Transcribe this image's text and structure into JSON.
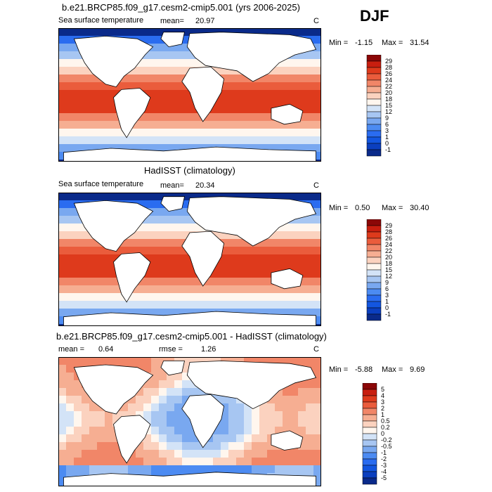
{
  "season": "DJF",
  "palette": {
    "sst": [
      "#0a2a8a",
      "#0b3fbf",
      "#1356e0",
      "#2a6cf0",
      "#4c8bf2",
      "#79a8f0",
      "#a7c6f2",
      "#d3e3f7",
      "#fff6ee",
      "#fbd2bf",
      "#f6ae92",
      "#f18668",
      "#ea5c3c",
      "#de3a1c",
      "#c81e0f",
      "#8b0707"
    ],
    "diff": [
      "#0a2a8a",
      "#0b3fbf",
      "#1356e0",
      "#2a6cf0",
      "#4c8bf2",
      "#79a8f0",
      "#a7c6f2",
      "#d3e3f7",
      "#fff6ee",
      "#fbd2bf",
      "#f6ae92",
      "#f18668",
      "#ea5c3c",
      "#de3a1c",
      "#c81e0f",
      "#8b0707"
    ]
  },
  "panels": [
    {
      "title": "b.e21.BRCP85.f09_g17.cesm2-cmip5.001 (yrs 2006-2025)",
      "left_label": "Sea surface temperature",
      "mean_label": "mean=",
      "mean_value": "20.97",
      "rmse_label": "",
      "rmse_value": "",
      "units": "C",
      "min_label": "Min =",
      "min_value": "-1.15",
      "max_label": "Max =",
      "max_value": "31.54",
      "colorbar_levels": [
        "29",
        "28",
        "26",
        "24",
        "22",
        "20",
        "18",
        "15",
        "12",
        "9",
        "6",
        "3",
        "1",
        "0",
        "-1"
      ],
      "field": "sst"
    },
    {
      "title": "HadISST (climatology)",
      "left_label": "Sea surface temperature",
      "mean_label": "mean=",
      "mean_value": "20.34",
      "rmse_label": "",
      "rmse_value": "",
      "units": "C",
      "min_label": "Min =",
      "min_value": "0.50",
      "max_label": "Max =",
      "max_value": "30.40",
      "colorbar_levels": [
        "29",
        "28",
        "26",
        "24",
        "22",
        "20",
        "18",
        "15",
        "12",
        "9",
        "6",
        "3",
        "1",
        "0",
        "-1"
      ],
      "field": "sst"
    },
    {
      "title": "b.e21.BRCP85.f09_g17.cesm2-cmip5.001 - HadISST (climatology)",
      "left_label": "",
      "mean_label": "mean =",
      "mean_value": "0.64",
      "rmse_label": "rmse =",
      "rmse_value": "1.26",
      "units": "C",
      "min_label": "Min =",
      "min_value": "-5.88",
      "max_label": "Max =",
      "max_value": "9.69",
      "colorbar_levels": [
        "5",
        "4",
        "3",
        "2",
        "1",
        "0.5",
        "0.2",
        "0",
        "-0.2",
        "-0.5",
        "-1",
        "-2",
        "-3",
        "-4",
        "-5"
      ],
      "field": "diff"
    }
  ]
}
